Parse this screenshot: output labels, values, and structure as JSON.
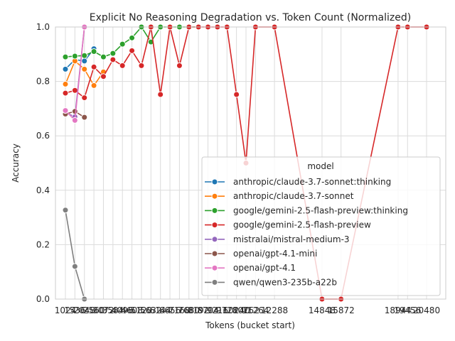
{
  "chart_data": {
    "type": "line",
    "title": "Explicit No Reasoning Degradation vs. Token Count (Normalized)",
    "xlabel": "Tokens (bucket start)",
    "ylabel": "Accuracy",
    "ylim": [
      0,
      1
    ],
    "y_ticks": [
      "0.0",
      "0.2",
      "0.4",
      "0.6",
      "0.8",
      "1.0"
    ],
    "x_ticks": [
      "1024",
      "1536",
      "2048",
      "2560",
      "3072",
      "3584",
      "4096",
      "4608",
      "5120",
      "5632",
      "6144",
      "6656",
      "7168",
      "7680",
      "8192",
      "8704",
      "9216",
      "9728",
      "10240",
      "10752",
      "11264",
      "12288",
      "14848",
      "15872",
      "18944",
      "19456",
      "20480"
    ],
    "x_tick_text": [
      "1024",
      "1536",
      "2048",
      "2560",
      "3072",
      "3584",
      "4096",
      "4608",
      "5120",
      "5632",
      "6144",
      "6656",
      "7168",
      "7680",
      "8192",
      "8704",
      "9216",
      "9728",
      "10240",
      "10752",
      "11264",
      "12288",
      "14848",
      "15872",
      "18944",
      "19456",
      "20480"
    ],
    "grid": true,
    "legend": {
      "title": "model",
      "placement": "lower-right"
    },
    "series": [
      {
        "name": "anthropic/claude-3.7-sonnet:thinking",
        "color": "#1f77b4",
        "x": [
          1024,
          1536,
          2048,
          2560
        ],
        "y": [
          0.845,
          0.88,
          0.875,
          0.92
        ]
      },
      {
        "name": "anthropic/claude-3.7-sonnet",
        "color": "#ff7f0e",
        "x": [
          1024,
          1536,
          2048,
          2560,
          3072
        ],
        "y": [
          0.79,
          0.875,
          0.845,
          0.785,
          0.835
        ]
      },
      {
        "name": "google/gemini-2.5-flash-preview:thinking",
        "color": "#2ca02c",
        "x": [
          1024,
          1536,
          2048,
          2560,
          3072,
          3584,
          4096,
          4608,
          5120,
          5632,
          6144,
          6656,
          7168,
          7680,
          8192
        ],
        "y": [
          0.89,
          0.893,
          0.895,
          0.91,
          0.89,
          0.903,
          0.937,
          0.96,
          1.0,
          0.945,
          1.0,
          1.0,
          1.0,
          1.0,
          1.0
        ]
      },
      {
        "name": "google/gemini-2.5-flash-preview",
        "color": "#d62728",
        "x": [
          1024,
          1536,
          2048,
          2560,
          3072,
          3584,
          4096,
          4608,
          5120,
          5632,
          6144,
          6656,
          7168,
          7680,
          8192,
          8704,
          9216,
          9728,
          10240,
          10752,
          11264,
          12288,
          14848,
          15872,
          18944,
          19456,
          20480
        ],
        "y": [
          0.757,
          0.767,
          0.74,
          0.853,
          0.818,
          0.88,
          0.858,
          0.913,
          0.858,
          1.0,
          0.752,
          1.0,
          0.858,
          1.0,
          1.0,
          1.0,
          1.0,
          1.0,
          0.752,
          0.5,
          1.0,
          1.0,
          0.0,
          0.0,
          1.0,
          1.0,
          1.0
        ]
      },
      {
        "name": "mistralai/mistral-medium-3",
        "color": "#9467bd",
        "x": [
          1024,
          1536,
          2048
        ],
        "y": [
          0.685,
          0.67,
          1.0
        ]
      },
      {
        "name": "openai/gpt-4.1-mini",
        "color": "#8c564b",
        "x": [
          1024,
          1536,
          2048
        ],
        "y": [
          0.68,
          0.69,
          0.668
        ]
      },
      {
        "name": "openai/gpt-4.1",
        "color": "#e377c2",
        "x": [
          1024,
          1536,
          2048
        ],
        "y": [
          0.693,
          0.657,
          1.0
        ]
      },
      {
        "name": "qwen/qwen3-235b-a22b",
        "color": "#7f7f7f",
        "x": [
          1024,
          1536,
          2048
        ],
        "y": [
          0.327,
          0.12,
          0.0
        ]
      }
    ]
  }
}
